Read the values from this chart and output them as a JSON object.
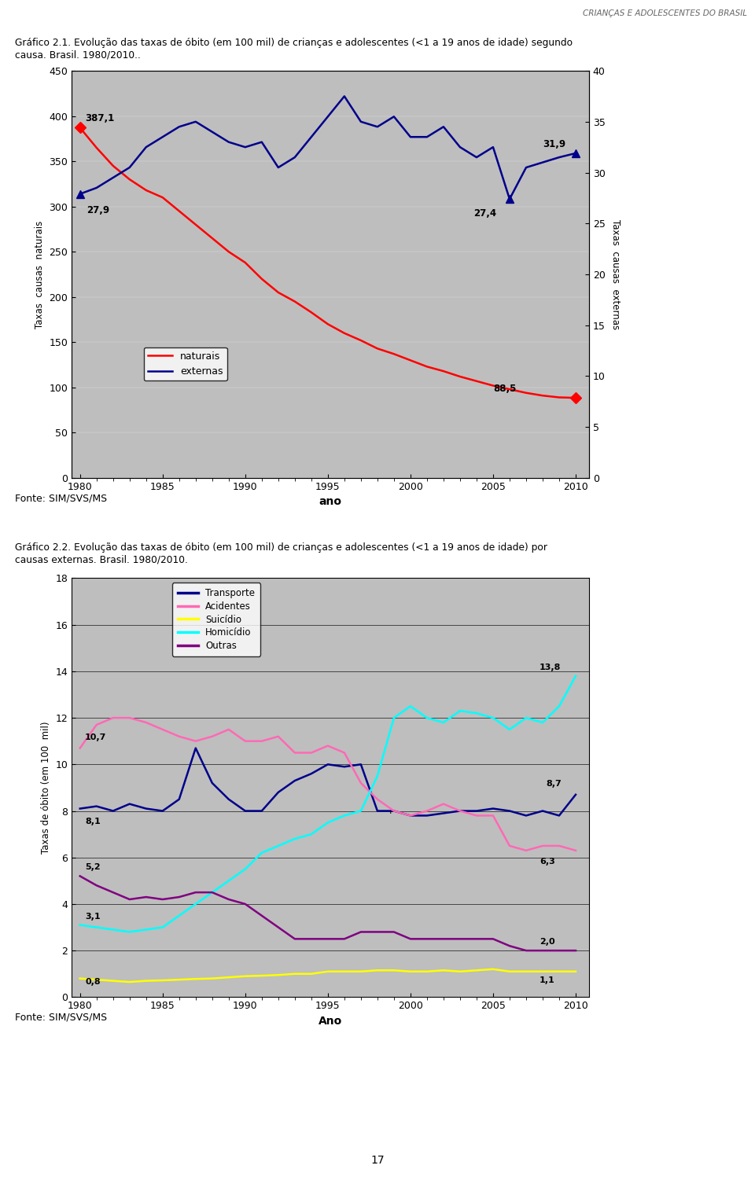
{
  "header_text": "CRIANÇAS E ADOLESCENTES DO BRASIL",
  "chart1": {
    "title_line1": "Gráfico 2.1. Evolução das taxas de óbito (em 100 mil) de crianças e adolescentes (<1 a 19 anos de idade) segundo",
    "title_line2": "causa. Brasil. 1980/2010..",
    "xlabel": "ano",
    "ylabel_left": "Taxas  causas  naturais",
    "ylabel_right": "Taxas  causas  externas",
    "ylim_left": [
      0,
      450
    ],
    "ylim_right": [
      0,
      40
    ],
    "yticks_left": [
      0,
      50,
      100,
      150,
      200,
      250,
      300,
      350,
      400,
      450
    ],
    "yticks_right": [
      0,
      5,
      10,
      15,
      20,
      25,
      30,
      35,
      40
    ],
    "fonte": "Fonte: SIM/SVS/MS",
    "naturais": {
      "years": [
        1980,
        1981,
        1982,
        1983,
        1984,
        1985,
        1986,
        1987,
        1988,
        1989,
        1990,
        1991,
        1992,
        1993,
        1994,
        1995,
        1996,
        1997,
        1998,
        1999,
        2000,
        2001,
        2002,
        2003,
        2004,
        2005,
        2006,
        2007,
        2008,
        2009,
        2010
      ],
      "values": [
        387.1,
        365,
        345,
        330,
        318,
        310,
        295,
        280,
        265,
        250,
        238,
        220,
        205,
        195,
        183,
        170,
        160,
        152,
        143,
        137,
        130,
        123,
        118,
        112,
        107,
        102,
        98,
        94,
        91,
        89,
        88.5
      ],
      "color": "#FF0000",
      "marker": "D",
      "label": "naturais"
    },
    "externas": {
      "years": [
        1980,
        1981,
        1982,
        1983,
        1984,
        1985,
        1986,
        1987,
        1988,
        1989,
        1990,
        1991,
        1992,
        1993,
        1994,
        1995,
        1996,
        1997,
        1998,
        1999,
        2000,
        2001,
        2002,
        2003,
        2004,
        2005,
        2006,
        2007,
        2008,
        2009,
        2010
      ],
      "values": [
        27.9,
        28.5,
        29.5,
        30.5,
        32.5,
        33.5,
        34.5,
        35.0,
        34.0,
        33.0,
        32.5,
        33.0,
        30.5,
        31.5,
        33.5,
        35.5,
        37.5,
        35.0,
        34.5,
        35.5,
        33.5,
        33.5,
        34.5,
        32.5,
        31.5,
        32.5,
        27.4,
        30.5,
        31.0,
        31.5,
        31.9
      ],
      "color": "#00008B",
      "marker": "^",
      "label": "externas"
    }
  },
  "chart2": {
    "title_line1": "Gráfico 2.2. Evolução das taxas de óbito (em 100 mil) de crianças e adolescentes (<1 a 19 anos de idade) por",
    "title_line2": "causas externas. Brasil. 1980/2010.",
    "xlabel": "Ano",
    "ylabel": "Taxas de óbito (em 100  mil)",
    "ylim": [
      0,
      18
    ],
    "yticks": [
      0,
      2,
      4,
      6,
      8,
      10,
      12,
      14,
      16,
      18
    ],
    "fonte": "Fonte: SIM/SVS/MS",
    "transporte": {
      "years": [
        1980,
        1981,
        1982,
        1983,
        1984,
        1985,
        1986,
        1987,
        1988,
        1989,
        1990,
        1991,
        1992,
        1993,
        1994,
        1995,
        1996,
        1997,
        1998,
        1999,
        2000,
        2001,
        2002,
        2003,
        2004,
        2005,
        2006,
        2007,
        2008,
        2009,
        2010
      ],
      "values": [
        8.1,
        8.2,
        8.0,
        8.3,
        8.1,
        8.0,
        8.5,
        10.7,
        9.2,
        8.5,
        8.0,
        8.0,
        8.8,
        9.3,
        9.6,
        10.0,
        9.9,
        10.0,
        8.0,
        8.0,
        7.8,
        7.8,
        7.9,
        8.0,
        8.0,
        8.1,
        8.0,
        7.8,
        8.0,
        7.8,
        8.7
      ],
      "color": "#00008B",
      "label": "Transporte"
    },
    "acidentes": {
      "years": [
        1980,
        1981,
        1982,
        1983,
        1984,
        1985,
        1986,
        1987,
        1988,
        1989,
        1990,
        1991,
        1992,
        1993,
        1994,
        1995,
        1996,
        1997,
        1998,
        1999,
        2000,
        2001,
        2002,
        2003,
        2004,
        2005,
        2006,
        2007,
        2008,
        2009,
        2010
      ],
      "values": [
        10.7,
        11.7,
        12.0,
        12.0,
        11.8,
        11.5,
        11.2,
        11.0,
        11.2,
        11.5,
        11.0,
        11.0,
        11.2,
        10.5,
        10.5,
        10.8,
        10.5,
        9.2,
        8.5,
        8.0,
        7.8,
        8.0,
        8.3,
        8.0,
        7.8,
        7.8,
        6.5,
        6.3,
        6.5,
        6.5,
        6.3
      ],
      "color": "#FF69B4",
      "label": "Acidentes"
    },
    "suicidio": {
      "years": [
        1980,
        1981,
        1982,
        1983,
        1984,
        1985,
        1986,
        1987,
        1988,
        1989,
        1990,
        1991,
        1992,
        1993,
        1994,
        1995,
        1996,
        1997,
        1998,
        1999,
        2000,
        2001,
        2002,
        2003,
        2004,
        2005,
        2006,
        2007,
        2008,
        2009,
        2010
      ],
      "values": [
        0.8,
        0.75,
        0.7,
        0.65,
        0.7,
        0.72,
        0.75,
        0.78,
        0.8,
        0.85,
        0.9,
        0.92,
        0.95,
        1.0,
        1.0,
        1.1,
        1.1,
        1.1,
        1.15,
        1.15,
        1.1,
        1.1,
        1.15,
        1.1,
        1.15,
        1.2,
        1.1,
        1.1,
        1.1,
        1.1,
        1.1
      ],
      "color": "#FFFF00",
      "label": "Suicídio"
    },
    "homicidio": {
      "years": [
        1980,
        1981,
        1982,
        1983,
        1984,
        1985,
        1986,
        1987,
        1988,
        1989,
        1990,
        1991,
        1992,
        1993,
        1994,
        1995,
        1996,
        1997,
        1998,
        1999,
        2000,
        2001,
        2002,
        2003,
        2004,
        2005,
        2006,
        2007,
        2008,
        2009,
        2010
      ],
      "values": [
        3.1,
        3.0,
        2.9,
        2.8,
        2.9,
        3.0,
        3.5,
        4.0,
        4.5,
        5.0,
        5.5,
        6.2,
        6.5,
        6.8,
        7.0,
        7.5,
        7.8,
        8.0,
        9.5,
        12.0,
        12.5,
        12.0,
        11.8,
        12.3,
        12.2,
        12.0,
        11.5,
        12.0,
        11.8,
        12.5,
        13.8
      ],
      "color": "#00FFFF",
      "label": "Homicídio"
    },
    "outras": {
      "years": [
        1980,
        1981,
        1982,
        1983,
        1984,
        1985,
        1986,
        1987,
        1988,
        1989,
        1990,
        1991,
        1992,
        1993,
        1994,
        1995,
        1996,
        1997,
        1998,
        1999,
        2000,
        2001,
        2002,
        2003,
        2004,
        2005,
        2006,
        2007,
        2008,
        2009,
        2010
      ],
      "values": [
        5.2,
        4.8,
        4.5,
        4.2,
        4.3,
        4.2,
        4.3,
        4.5,
        4.5,
        4.2,
        4.0,
        3.5,
        3.0,
        2.5,
        2.5,
        2.5,
        2.5,
        2.8,
        2.8,
        2.8,
        2.5,
        2.5,
        2.5,
        2.5,
        2.5,
        2.5,
        2.2,
        2.0,
        2.0,
        2.0,
        2.0
      ],
      "color": "#800080",
      "label": "Outras"
    }
  }
}
